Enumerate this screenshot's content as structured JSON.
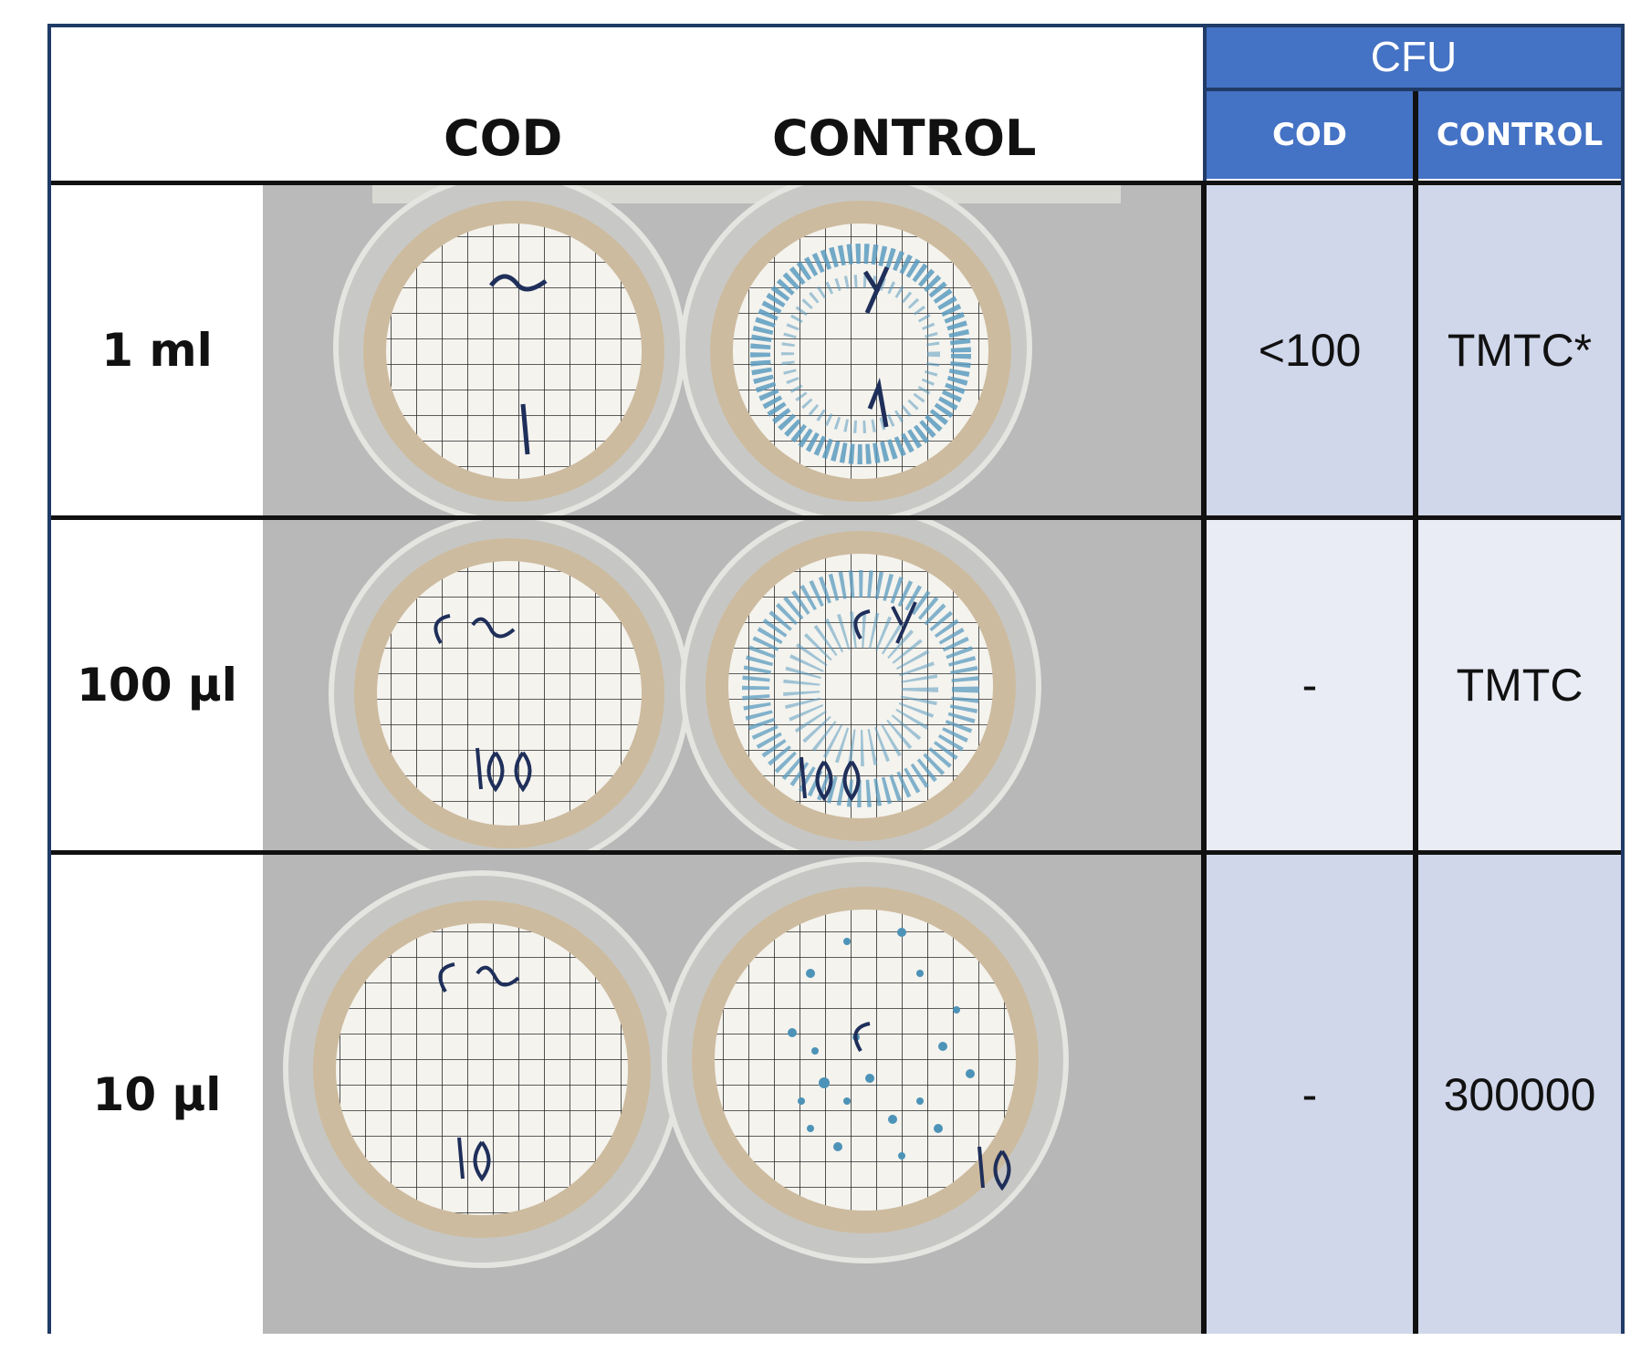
{
  "header": {
    "col_cod": "COD",
    "col_control": "CONTROL",
    "cfu_title": "CFU",
    "cfu_cod": "COD",
    "cfu_control": "CONTROL"
  },
  "rows": [
    {
      "label": "1 ml",
      "cod_mark": "Cu\n1",
      "control_mark": "Y.\n1",
      "cfu_cod": "<100",
      "cfu_control": "TMTC*"
    },
    {
      "label": "100 µl",
      "cod_mark": "Cu\n100",
      "control_mark": "Cy\n100",
      "cfu_cod": "-",
      "cfu_control": "TMTC"
    },
    {
      "label": "10 µl",
      "cod_mark": "Cu\n10",
      "control_mark": "C\n10",
      "cfu_cod": "-",
      "cfu_control": "300000"
    }
  ],
  "colors": {
    "accent_blue": "#4472c4",
    "frame_navy": "#1f3b66",
    "cell_dark": "#d0d7ea",
    "cell_light": "#e9ebf5",
    "colony_blue": "#5b9bbf"
  }
}
